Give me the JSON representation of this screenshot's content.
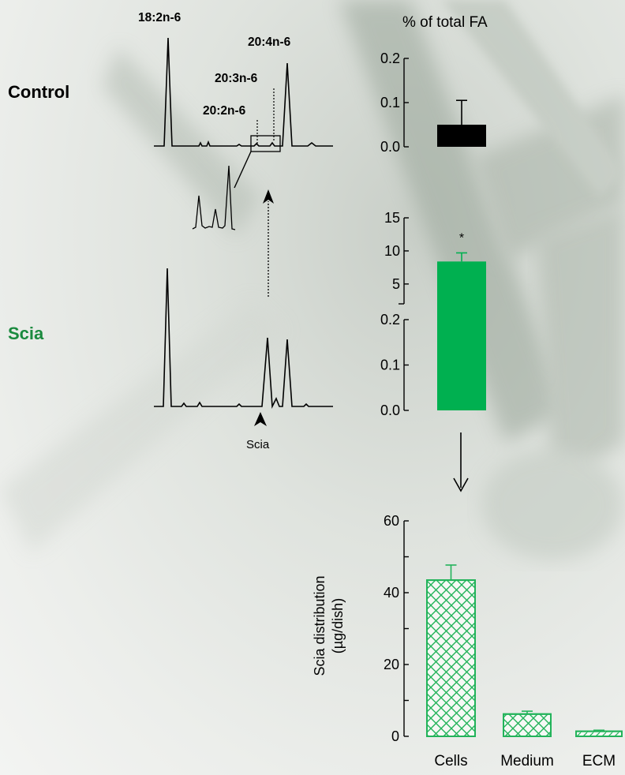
{
  "colors": {
    "control_bar": "#000000",
    "scia_bar": "#00b050",
    "scia_label": "#1a8a3e",
    "hatch": "#22b35a"
  },
  "row_labels": {
    "control": "Control",
    "scia": "Scia"
  },
  "chromatogram": {
    "peak_labels": [
      "18:2n-6",
      "20:4n-6",
      "20:3n-6",
      "20:2n-6"
    ],
    "scia_marker": "Scia"
  },
  "chart_data": [
    {
      "type": "bar",
      "panel": "control",
      "title": "% of total FA",
      "categories": [
        "Control"
      ],
      "values": [
        0.05
      ],
      "error": [
        0.055
      ],
      "ylim": [
        0,
        0.2
      ],
      "yticks": [
        "0.0",
        "0.1",
        "0.2"
      ]
    },
    {
      "type": "bar",
      "panel": "scia",
      "categories": [
        "Scia"
      ],
      "values": [
        8.4
      ],
      "error": [
        1.3
      ],
      "significance": "*",
      "axis_break": true,
      "ylim_lower": [
        0,
        0.2
      ],
      "ylim_upper": [
        2,
        15
      ],
      "yticks_lower": [
        "0.0",
        "0.1",
        "0.2"
      ],
      "yticks_upper": [
        "5",
        "10",
        "15"
      ]
    },
    {
      "type": "bar",
      "panel": "distribution",
      "ylabel": "Scia distribution",
      "ylabel_unit": "(µg/dish)",
      "categories": [
        "Cells",
        "Medium",
        "ECM"
      ],
      "values": [
        43.5,
        6.2,
        1.4
      ],
      "error": [
        4.2,
        0.8,
        0.3
      ],
      "ylim": [
        0,
        60
      ],
      "yticks": [
        "0",
        "20",
        "40",
        "60"
      ]
    }
  ]
}
